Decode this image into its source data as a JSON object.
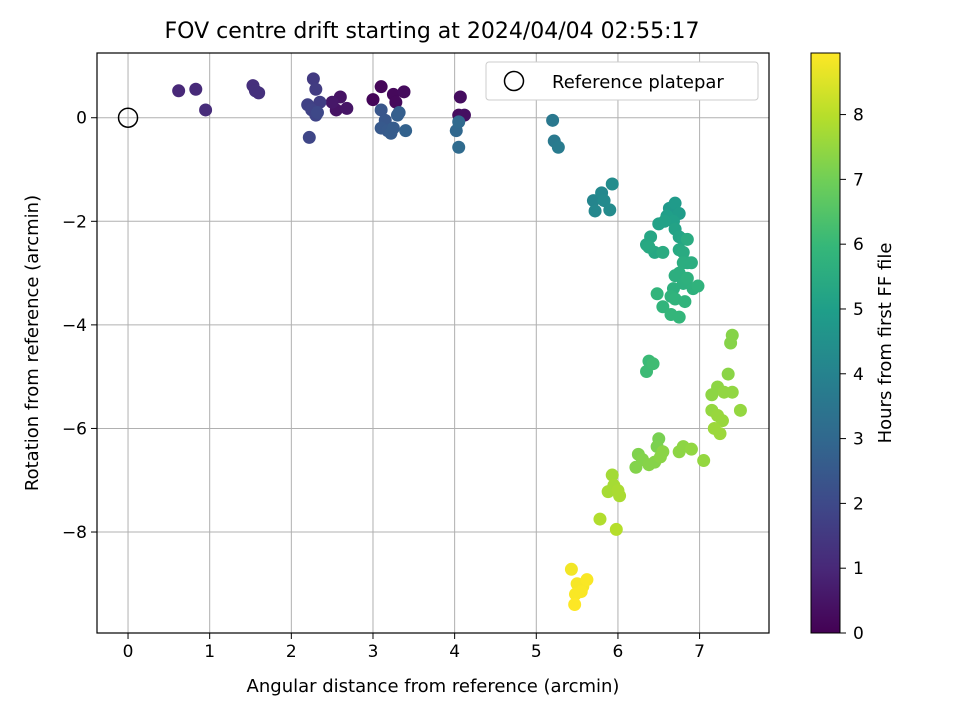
{
  "chart_data": {
    "type": "scatter",
    "title": "FOV centre drift starting at 2024/04/04 02:55:17",
    "xlabel": "Angular distance from reference (arcmin)",
    "ylabel": "Rotation from reference (arcmin)",
    "xlim": [
      -0.38,
      7.85
    ],
    "ylim": [
      -9.95,
      1.25
    ],
    "xticks": [
      0,
      1,
      2,
      3,
      4,
      5,
      6,
      7
    ],
    "yticks": [
      0,
      -2,
      -4,
      -6,
      -8
    ],
    "grid": true,
    "legend": {
      "placement": "top-right",
      "entries": [
        "Reference platepar"
      ]
    },
    "reference_point": {
      "x": 0,
      "y": 0
    },
    "colorbar": {
      "label": "Hours from first FF file",
      "range": [
        0,
        8.95
      ],
      "ticks": [
        0,
        1,
        2,
        3,
        4,
        5,
        6,
        7,
        8
      ],
      "colormap": [
        "#440154",
        "#482878",
        "#3e4989",
        "#31688e",
        "#26828e",
        "#1f9e89",
        "#35b779",
        "#6ece58",
        "#b5de2b",
        "#fde725"
      ]
    },
    "points": [
      [
        3.0,
        0.35,
        0.1
      ],
      [
        3.1,
        0.6,
        0.15
      ],
      [
        3.25,
        0.45,
        0.2
      ],
      [
        3.28,
        0.3,
        0.2
      ],
      [
        3.38,
        0.5,
        0.25
      ],
      [
        4.07,
        0.4,
        0.3
      ],
      [
        4.05,
        0.05,
        0.3
      ],
      [
        4.12,
        0.05,
        0.35
      ],
      [
        2.55,
        0.15,
        0.45
      ],
      [
        2.6,
        0.4,
        0.45
      ],
      [
        2.68,
        0.18,
        0.5
      ],
      [
        2.5,
        0.3,
        0.55
      ],
      [
        0.62,
        0.52,
        1.0
      ],
      [
        0.83,
        0.55,
        1.05
      ],
      [
        0.95,
        0.15,
        1.1
      ],
      [
        1.53,
        0.62,
        1.2
      ],
      [
        1.56,
        0.52,
        1.25
      ],
      [
        1.6,
        0.48,
        1.25
      ],
      [
        2.27,
        0.75,
        1.55
      ],
      [
        2.3,
        0.55,
        1.6
      ],
      [
        2.35,
        0.3,
        1.65
      ],
      [
        2.2,
        0.25,
        1.75
      ],
      [
        2.25,
        0.15,
        1.8
      ],
      [
        2.3,
        0.05,
        1.85
      ],
      [
        2.22,
        -0.38,
        1.9
      ],
      [
        2.32,
        0.1,
        1.95
      ],
      [
        3.1,
        0.15,
        2.4
      ],
      [
        3.15,
        -0.05,
        2.45
      ],
      [
        3.1,
        -0.2,
        2.5
      ],
      [
        3.18,
        -0.25,
        2.55
      ],
      [
        3.22,
        -0.3,
        2.6
      ],
      [
        3.25,
        -0.2,
        2.6
      ],
      [
        3.3,
        0.05,
        2.7
      ],
      [
        3.32,
        0.1,
        2.7
      ],
      [
        3.4,
        -0.25,
        2.8
      ],
      [
        4.02,
        -0.25,
        3.0
      ],
      [
        4.05,
        -0.08,
        3.05
      ],
      [
        4.05,
        -0.57,
        3.1
      ],
      [
        5.2,
        -0.05,
        3.6
      ],
      [
        5.22,
        -0.45,
        3.65
      ],
      [
        5.27,
        -0.57,
        3.7
      ],
      [
        5.7,
        -1.6,
        4.1
      ],
      [
        5.72,
        -1.8,
        4.15
      ],
      [
        5.8,
        -1.45,
        4.2
      ],
      [
        5.83,
        -1.6,
        4.25
      ],
      [
        5.9,
        -1.78,
        4.3
      ],
      [
        5.93,
        -1.28,
        4.35
      ],
      [
        6.63,
        -1.75,
        4.8
      ],
      [
        6.7,
        -1.65,
        4.85
      ],
      [
        6.75,
        -1.85,
        4.9
      ],
      [
        6.6,
        -1.9,
        5.0
      ],
      [
        6.68,
        -2.0,
        5.05
      ],
      [
        6.5,
        -2.05,
        5.1
      ],
      [
        6.57,
        -2.0,
        5.1
      ],
      [
        6.7,
        -2.15,
        5.15
      ],
      [
        6.75,
        -2.3,
        5.2
      ],
      [
        6.8,
        -2.35,
        5.25
      ],
      [
        6.4,
        -2.3,
        5.3
      ],
      [
        6.35,
        -2.45,
        5.35
      ],
      [
        6.45,
        -2.6,
        5.35
      ],
      [
        6.75,
        -2.55,
        5.4
      ],
      [
        6.8,
        -2.6,
        5.45
      ],
      [
        6.85,
        -2.35,
        5.5
      ],
      [
        6.85,
        -2.8,
        5.5
      ],
      [
        6.8,
        -2.8,
        5.55
      ],
      [
        6.9,
        -2.8,
        5.55
      ],
      [
        6.75,
        -3.0,
        5.6
      ],
      [
        6.7,
        -3.05,
        5.6
      ],
      [
        6.8,
        -3.2,
        5.65
      ],
      [
        6.68,
        -3.3,
        5.65
      ],
      [
        6.85,
        -3.1,
        5.7
      ],
      [
        6.92,
        -3.3,
        5.7
      ],
      [
        6.98,
        -3.25,
        5.75
      ],
      [
        6.65,
        -3.45,
        5.75
      ],
      [
        6.7,
        -3.5,
        5.8
      ],
      [
        6.82,
        -3.55,
        5.8
      ],
      [
        6.55,
        -3.65,
        5.85
      ],
      [
        6.48,
        -3.4,
        5.85
      ],
      [
        6.65,
        -3.8,
        5.9
      ],
      [
        6.75,
        -3.85,
        5.9
      ],
      [
        6.38,
        -2.5,
        5.4
      ],
      [
        6.55,
        -2.6,
        5.5
      ],
      [
        6.38,
        -4.7,
        6.05
      ],
      [
        6.35,
        -4.9,
        6.1
      ],
      [
        6.43,
        -4.75,
        6.15
      ],
      [
        7.4,
        -4.2,
        7.3
      ],
      [
        7.38,
        -4.35,
        7.3
      ],
      [
        7.35,
        -4.95,
        7.35
      ],
      [
        7.22,
        -5.2,
        7.4
      ],
      [
        7.15,
        -5.35,
        7.4
      ],
      [
        7.3,
        -5.3,
        7.45
      ],
      [
        7.4,
        -5.3,
        7.45
      ],
      [
        7.5,
        -5.65,
        7.5
      ],
      [
        7.15,
        -5.65,
        7.5
      ],
      [
        7.22,
        -5.75,
        7.55
      ],
      [
        7.28,
        -5.85,
        7.55
      ],
      [
        7.18,
        -6.0,
        7.6
      ],
      [
        7.25,
        -6.1,
        7.6
      ],
      [
        6.5,
        -6.2,
        7.1
      ],
      [
        6.48,
        -6.35,
        7.15
      ],
      [
        6.25,
        -6.5,
        7.2
      ],
      [
        6.3,
        -6.6,
        7.25
      ],
      [
        6.22,
        -6.75,
        7.25
      ],
      [
        6.38,
        -6.7,
        7.3
      ],
      [
        6.45,
        -6.65,
        7.3
      ],
      [
        6.55,
        -6.45,
        7.35
      ],
      [
        6.52,
        -6.55,
        7.35
      ],
      [
        6.75,
        -6.45,
        7.4
      ],
      [
        6.8,
        -6.35,
        7.4
      ],
      [
        6.9,
        -6.4,
        7.45
      ],
      [
        7.05,
        -6.62,
        7.5
      ],
      [
        5.93,
        -6.9,
        7.7
      ],
      [
        5.95,
        -7.1,
        7.75
      ],
      [
        5.88,
        -7.22,
        7.75
      ],
      [
        6.0,
        -7.2,
        7.8
      ],
      [
        6.02,
        -7.3,
        7.8
      ],
      [
        5.78,
        -7.75,
        7.9
      ],
      [
        5.98,
        -7.95,
        7.95
      ],
      [
        5.43,
        -8.72,
        8.8
      ],
      [
        5.5,
        -9.0,
        8.85
      ],
      [
        5.57,
        -9.05,
        8.85
      ],
      [
        5.62,
        -8.92,
        8.9
      ],
      [
        5.48,
        -9.2,
        8.9
      ],
      [
        5.55,
        -9.15,
        8.9
      ],
      [
        5.47,
        -9.4,
        8.95
      ]
    ]
  }
}
